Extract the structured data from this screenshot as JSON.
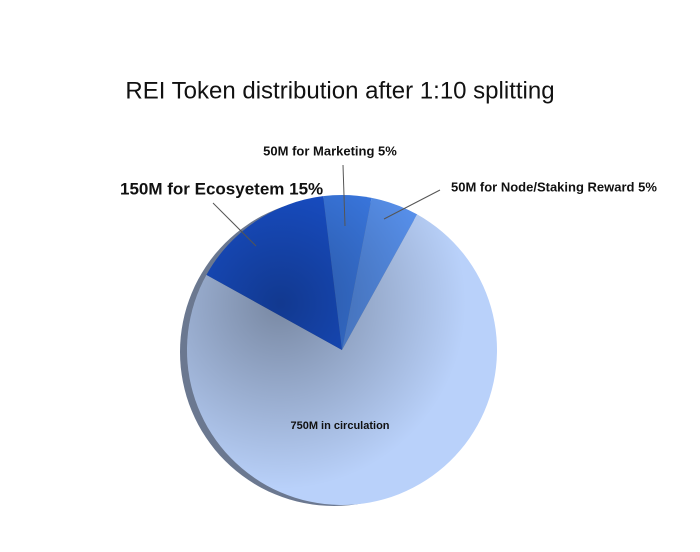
{
  "chart_data": {
    "type": "pie",
    "title": "REI Token distribution after 1:10 splitting",
    "categories": [
      "50M for Marketing 5%",
      "50M for Node/Staking Reward 5%",
      "750M in circulation",
      "150M for Ecosyetem 15%"
    ],
    "values": [
      50,
      50,
      750,
      150
    ],
    "colors": [
      "#3e80f0",
      "#5b96f5",
      "#b9d1fa",
      "#1b57dc"
    ]
  }
}
